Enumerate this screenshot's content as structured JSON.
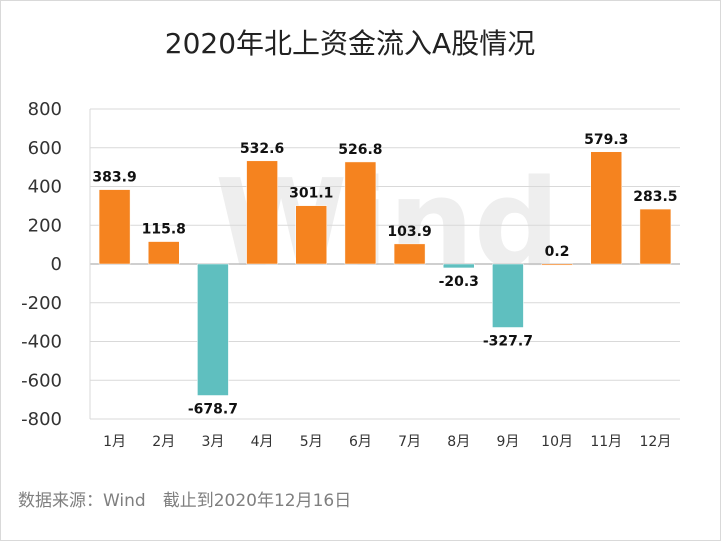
{
  "chart_data": {
    "type": "bar",
    "title": "2020年北上资金流入A股情况",
    "categories": [
      "1月",
      "2月",
      "3月",
      "4月",
      "5月",
      "6月",
      "7月",
      "8月",
      "9月",
      "10月",
      "11月",
      "12月"
    ],
    "values": [
      383.9,
      115.8,
      -678.7,
      532.6,
      301.1,
      526.8,
      103.9,
      -20.3,
      -327.7,
      0.2,
      579.3,
      283.5
    ],
    "value_labels": [
      "383.9",
      "115.8",
      "-678.7",
      "532.6",
      "301.1",
      "526.8",
      "103.9",
      "-20.3",
      "-327.7",
      "0.2",
      "579.3",
      "283.5"
    ],
    "yticks": [
      "800",
      "600",
      "400",
      "200",
      "0",
      "-200",
      "-400",
      "-600",
      "-800"
    ],
    "ylim": [
      -800,
      800
    ],
    "ytick_values": [
      800,
      600,
      400,
      200,
      0,
      -200,
      -400,
      -600,
      -800
    ],
    "xlabel": "",
    "ylabel": "",
    "grid": true,
    "colors": {
      "positive": "#F5831F",
      "negative": "#5FBFBF",
      "grid": "#d9d9d9",
      "zero": "#bfbfbf"
    }
  },
  "source": "数据来源：Wind　截止到2020年12月16日",
  "watermark": "Wind"
}
